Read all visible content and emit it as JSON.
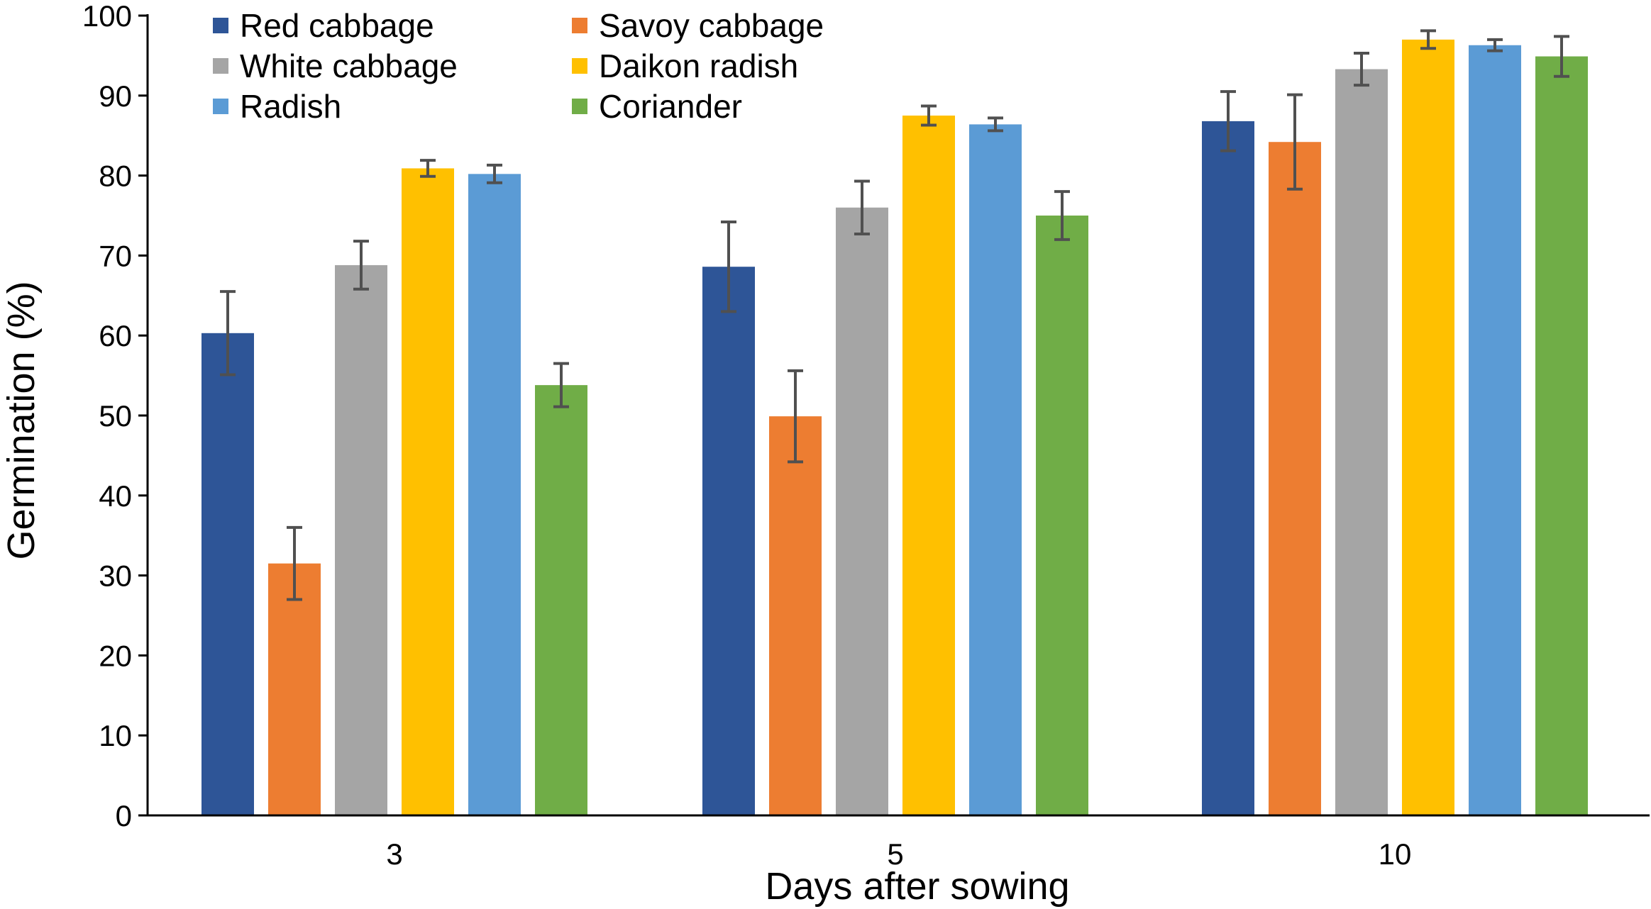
{
  "chart_data": {
    "type": "bar",
    "title": "",
    "xlabel": "Days after sowing",
    "ylabel": "Germination (%)",
    "ylim": [
      0,
      100
    ],
    "yticks": [
      0,
      10,
      20,
      30,
      40,
      50,
      60,
      70,
      80,
      90,
      100
    ],
    "ytick_labels": [
      "0",
      "10",
      "20",
      "30",
      "40",
      "50",
      "60",
      "70",
      "80",
      "90",
      "100"
    ],
    "grid": false,
    "legend_position": "top-left",
    "categories": [
      "3",
      "5",
      "10"
    ],
    "series": [
      {
        "name": "Red cabbage",
        "color": "#2E5597",
        "values": [
          60.3,
          68.6,
          86.8
        ],
        "error": [
          5.2,
          5.6,
          3.7
        ]
      },
      {
        "name": "Savoy cabbage",
        "color": "#ED7D31",
        "values": [
          31.5,
          49.9,
          84.2
        ],
        "error": [
          4.5,
          5.7,
          5.9
        ]
      },
      {
        "name": "White cabbage",
        "color": "#A5A5A5",
        "values": [
          68.8,
          76.0,
          93.3
        ],
        "error": [
          3.0,
          3.3,
          2.0
        ]
      },
      {
        "name": "Daikon radish",
        "color": "#FFC000",
        "values": [
          80.9,
          87.5,
          97.0
        ],
        "error": [
          1.0,
          1.2,
          1.1
        ]
      },
      {
        "name": "Radish",
        "color": "#5B9BD5",
        "values": [
          80.2,
          86.4,
          96.3
        ],
        "error": [
          1.1,
          0.8,
          0.7
        ]
      },
      {
        "name": "Coriander",
        "color": "#70AD47",
        "values": [
          53.8,
          75.0,
          94.9
        ],
        "error": [
          2.7,
          3.0,
          2.5
        ]
      }
    ]
  }
}
